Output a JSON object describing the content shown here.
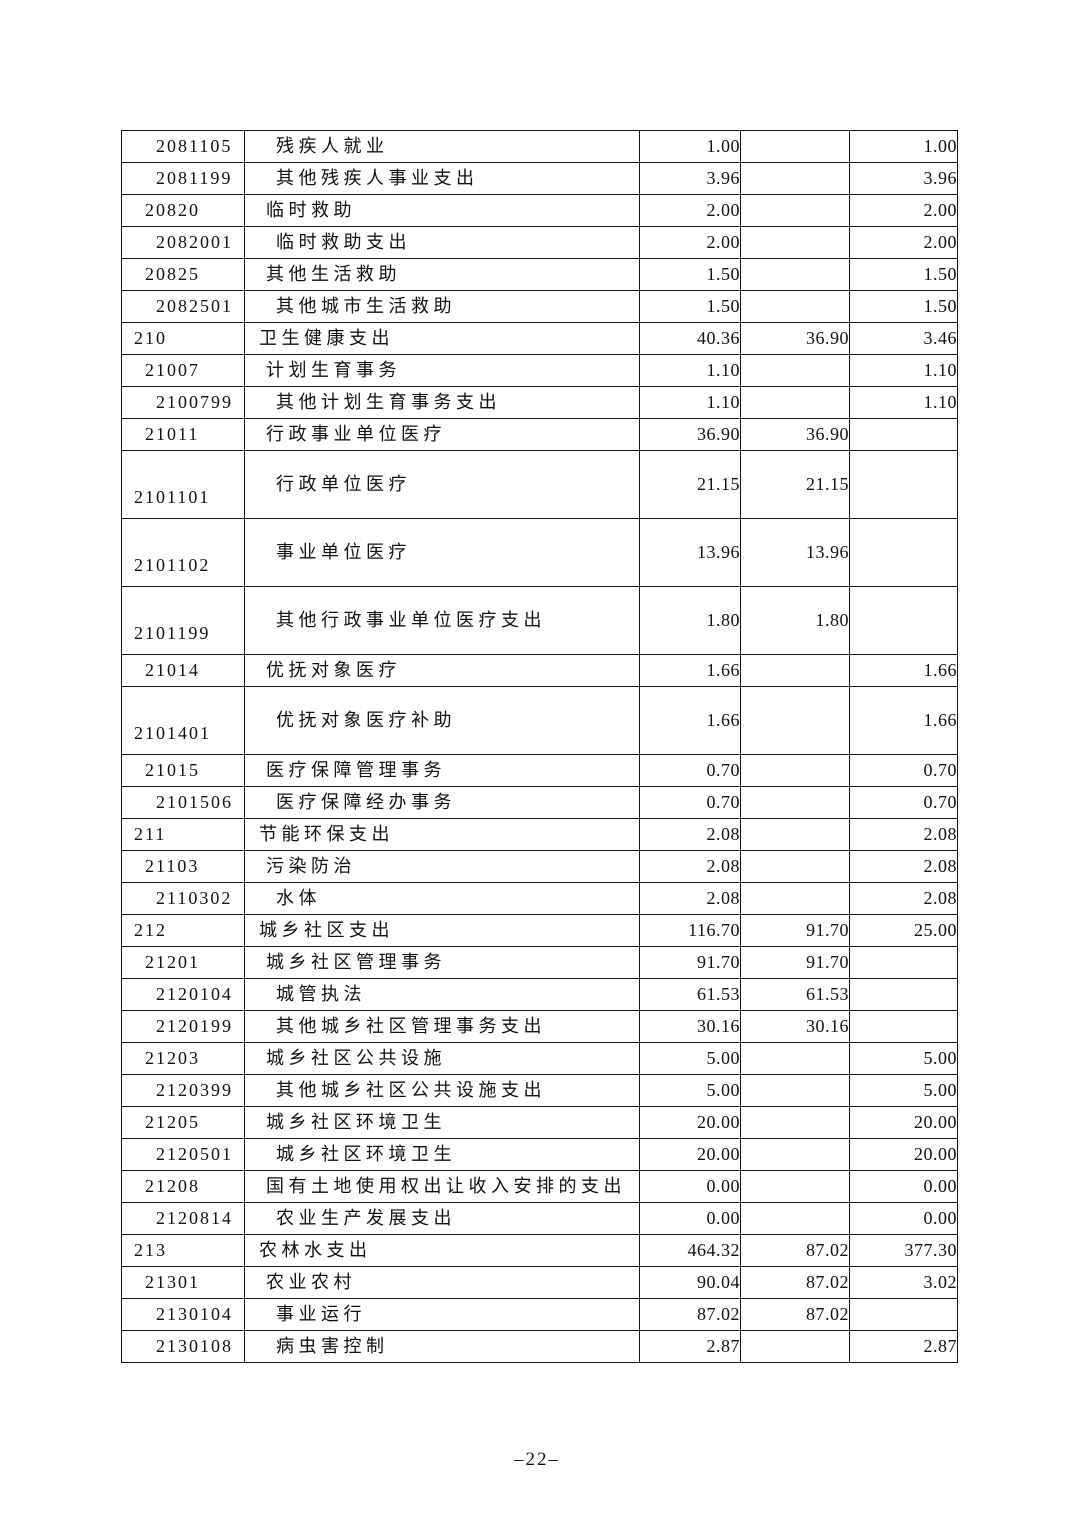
{
  "table": {
    "rows": [
      {
        "code": "2081105",
        "name": "残疾人就业",
        "level": 3,
        "tall": false,
        "values": [
          "1.00",
          "",
          "1.00"
        ]
      },
      {
        "code": "2081199",
        "name": "其他残疾人事业支出",
        "level": 3,
        "tall": false,
        "values": [
          "3.96",
          "",
          "3.96"
        ]
      },
      {
        "code": "20820",
        "name": "临时救助",
        "level": 2,
        "tall": false,
        "values": [
          "2.00",
          "",
          "2.00"
        ]
      },
      {
        "code": "2082001",
        "name": "临时救助支出",
        "level": 3,
        "tall": false,
        "values": [
          "2.00",
          "",
          "2.00"
        ]
      },
      {
        "code": "20825",
        "name": "其他生活救助",
        "level": 2,
        "tall": false,
        "values": [
          "1.50",
          "",
          "1.50"
        ]
      },
      {
        "code": "2082501",
        "name": "其他城市生活救助",
        "level": 3,
        "tall": false,
        "values": [
          "1.50",
          "",
          "1.50"
        ]
      },
      {
        "code": "210",
        "name": "卫生健康支出",
        "level": 1,
        "tall": false,
        "values": [
          "40.36",
          "36.90",
          "3.46"
        ]
      },
      {
        "code": "21007",
        "name": "计划生育事务",
        "level": 2,
        "tall": false,
        "values": [
          "1.10",
          "",
          "1.10"
        ]
      },
      {
        "code": "2100799",
        "name": "其他计划生育事务支出",
        "level": 3,
        "tall": false,
        "values": [
          "1.10",
          "",
          "1.10"
        ]
      },
      {
        "code": "21011",
        "name": "行政事业单位医疗",
        "level": 2,
        "tall": false,
        "values": [
          "36.90",
          "36.90",
          ""
        ]
      },
      {
        "code": "2101101",
        "name": "行政单位医疗",
        "level": 3,
        "tall": true,
        "values": [
          "21.15",
          "21.15",
          ""
        ]
      },
      {
        "code": "2101102",
        "name": "事业单位医疗",
        "level": 3,
        "tall": true,
        "values": [
          "13.96",
          "13.96",
          ""
        ]
      },
      {
        "code": "2101199",
        "name": "其他行政事业单位医疗支出",
        "level": 3,
        "tall": true,
        "values": [
          "1.80",
          "1.80",
          ""
        ]
      },
      {
        "code": "21014",
        "name": "优抚对象医疗",
        "level": 2,
        "tall": false,
        "values": [
          "1.66",
          "",
          "1.66"
        ]
      },
      {
        "code": "2101401",
        "name": "优抚对象医疗补助",
        "level": 3,
        "tall": true,
        "values": [
          "1.66",
          "",
          "1.66"
        ]
      },
      {
        "code": "21015",
        "name": "医疗保障管理事务",
        "level": 2,
        "tall": false,
        "values": [
          "0.70",
          "",
          "0.70"
        ]
      },
      {
        "code": "2101506",
        "name": "医疗保障经办事务",
        "level": 3,
        "tall": false,
        "values": [
          "0.70",
          "",
          "0.70"
        ]
      },
      {
        "code": "211",
        "name": "节能环保支出",
        "level": 1,
        "tall": false,
        "values": [
          "2.08",
          "",
          "2.08"
        ]
      },
      {
        "code": "21103",
        "name": "污染防治",
        "level": 2,
        "tall": false,
        "values": [
          "2.08",
          "",
          "2.08"
        ]
      },
      {
        "code": "2110302",
        "name": "水体",
        "level": 3,
        "tall": false,
        "values": [
          "2.08",
          "",
          "2.08"
        ]
      },
      {
        "code": "212",
        "name": "城乡社区支出",
        "level": 1,
        "tall": false,
        "values": [
          "116.70",
          "91.70",
          "25.00"
        ]
      },
      {
        "code": "21201",
        "name": "城乡社区管理事务",
        "level": 2,
        "tall": false,
        "values": [
          "91.70",
          "91.70",
          ""
        ]
      },
      {
        "code": "2120104",
        "name": "城管执法",
        "level": 3,
        "tall": false,
        "values": [
          "61.53",
          "61.53",
          ""
        ]
      },
      {
        "code": "2120199",
        "name": "其他城乡社区管理事务支出",
        "level": 3,
        "tall": false,
        "values": [
          "30.16",
          "30.16",
          ""
        ]
      },
      {
        "code": "21203",
        "name": "城乡社区公共设施",
        "level": 2,
        "tall": false,
        "values": [
          "5.00",
          "",
          "5.00"
        ]
      },
      {
        "code": "2120399",
        "name": "其他城乡社区公共设施支出",
        "level": 3,
        "tall": false,
        "values": [
          "5.00",
          "",
          "5.00"
        ]
      },
      {
        "code": "21205",
        "name": "城乡社区环境卫生",
        "level": 2,
        "tall": false,
        "values": [
          "20.00",
          "",
          "20.00"
        ]
      },
      {
        "code": "2120501",
        "name": "城乡社区环境卫生",
        "level": 3,
        "tall": false,
        "values": [
          "20.00",
          "",
          "20.00"
        ]
      },
      {
        "code": "21208",
        "name": "国有土地使用权出让收入安排的支出",
        "level": 2,
        "tall": false,
        "values": [
          "0.00",
          "",
          "0.00"
        ]
      },
      {
        "code": "2120814",
        "name": "农业生产发展支出",
        "level": 3,
        "tall": false,
        "values": [
          "0.00",
          "",
          "0.00"
        ]
      },
      {
        "code": "213",
        "name": "农林水支出",
        "level": 1,
        "tall": false,
        "values": [
          "464.32",
          "87.02",
          "377.30"
        ]
      },
      {
        "code": "21301",
        "name": "农业农村",
        "level": 2,
        "tall": false,
        "values": [
          "90.04",
          "87.02",
          "3.02"
        ]
      },
      {
        "code": "2130104",
        "name": "事业运行",
        "level": 3,
        "tall": false,
        "values": [
          "87.02",
          "87.02",
          ""
        ]
      },
      {
        "code": "2130108",
        "name": "病虫害控制",
        "level": 3,
        "tall": false,
        "values": [
          "2.87",
          "",
          "2.87"
        ]
      }
    ]
  },
  "footer": {
    "page_number": "–22–"
  }
}
